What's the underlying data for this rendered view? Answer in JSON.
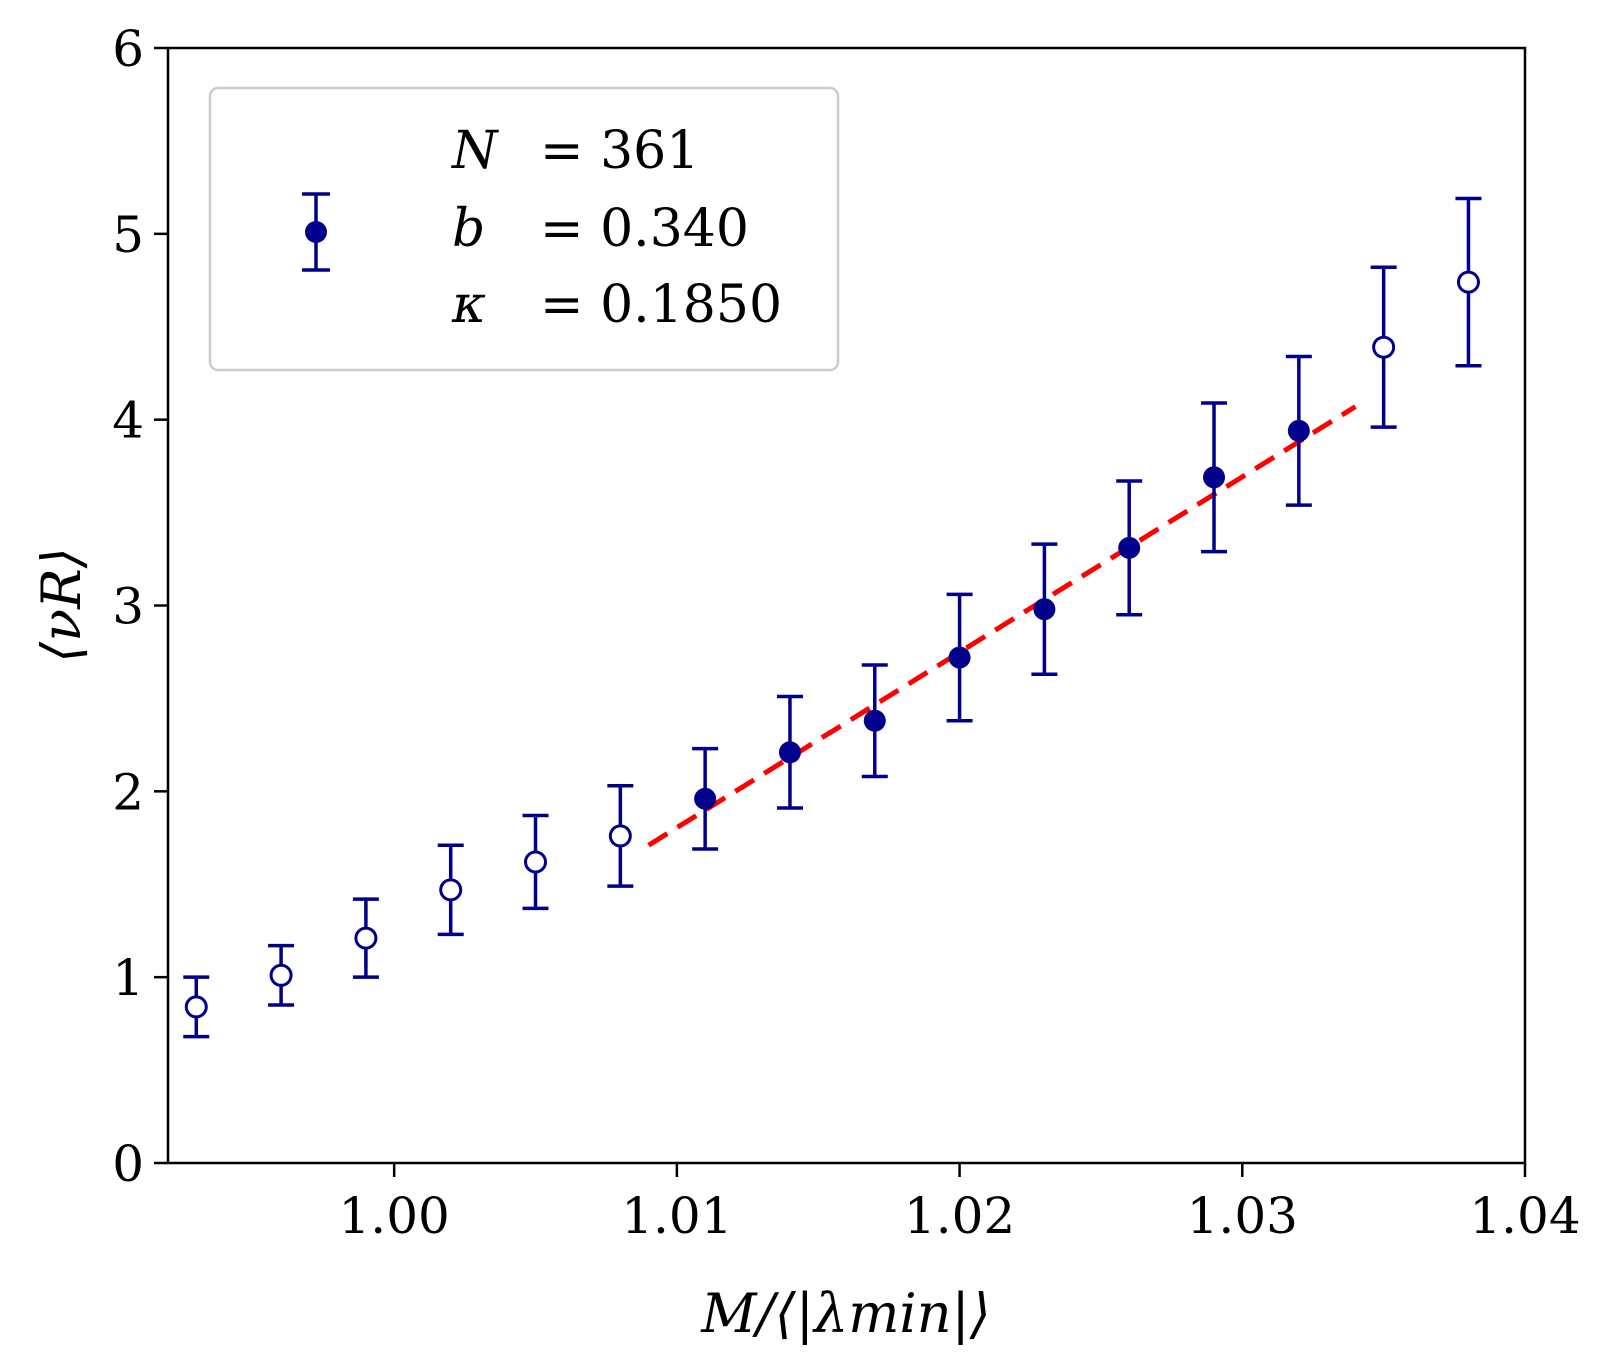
{
  "chart_data": {
    "type": "scatter",
    "title": "",
    "xlabel": "M/⟨|λmin|⟩",
    "ylabel": "⟨νR⟩",
    "xlim": [
      0.992,
      1.04
    ],
    "ylim": [
      0,
      6
    ],
    "x_ticks": [
      1.0,
      1.01,
      1.02,
      1.03,
      1.04
    ],
    "x_tick_labels": [
      "1.00",
      "1.01",
      "1.02",
      "1.03",
      "1.04"
    ],
    "y_ticks": [
      0,
      1,
      2,
      3,
      4,
      5,
      6
    ],
    "y_tick_labels": [
      "0",
      "1",
      "2",
      "3",
      "4",
      "5",
      "6"
    ],
    "grid": false,
    "legend_position": "top-left",
    "legend": {
      "lines": [
        {
          "symbol": "N",
          "text": "= 361"
        },
        {
          "symbol": "b",
          "text": "= 0.340"
        },
        {
          "symbol": "κ",
          "text": "= 0.1850"
        }
      ]
    },
    "colors": {
      "points": "#00008b",
      "fit": "#ff0000"
    },
    "series": [
      {
        "marker": "open-circle",
        "x": [
          0.993,
          0.996,
          0.999,
          1.002,
          1.005,
          1.008,
          1.035,
          1.038
        ],
        "y": [
          0.84,
          1.01,
          1.21,
          1.47,
          1.62,
          1.76,
          4.39,
          4.74
        ],
        "err": [
          0.16,
          0.16,
          0.21,
          0.24,
          0.25,
          0.27,
          0.43,
          0.45
        ]
      },
      {
        "marker": "filled-circle",
        "x": [
          1.011,
          1.014,
          1.017,
          1.02,
          1.023,
          1.026,
          1.029,
          1.032
        ],
        "y": [
          1.96,
          2.21,
          2.38,
          2.72,
          2.98,
          3.31,
          3.69,
          3.94
        ],
        "err": [
          0.27,
          0.3,
          0.3,
          0.34,
          0.35,
          0.36,
          0.4,
          0.4
        ]
      }
    ],
    "fit_line": {
      "x": [
        1.009,
        1.034
      ],
      "y": [
        1.71,
        4.07
      ],
      "style": "dashed"
    }
  }
}
